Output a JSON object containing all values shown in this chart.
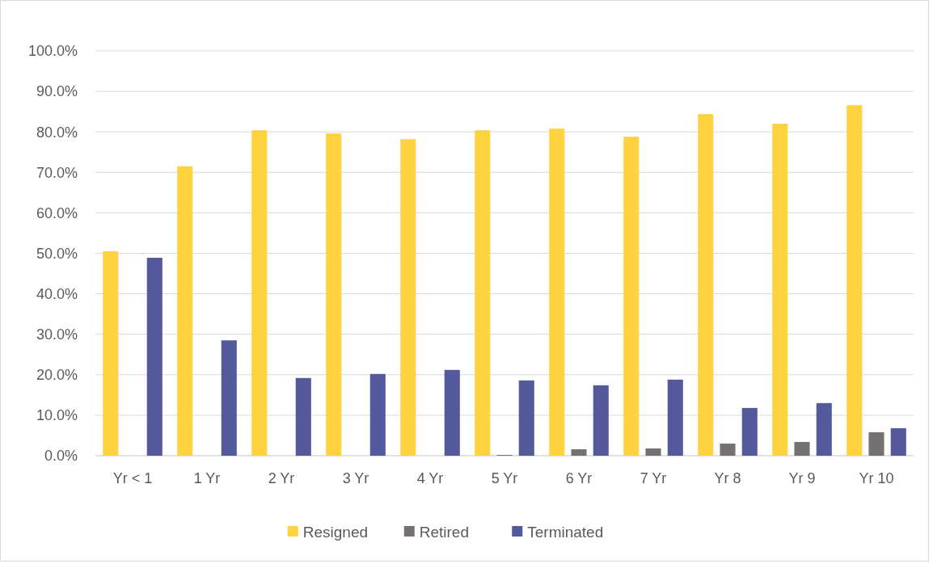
{
  "chart_data": {
    "type": "bar",
    "categories": [
      "Yr < 1",
      "1 Yr",
      "2 Yr",
      "3 Yr",
      "4 Yr",
      "5 Yr",
      "6 Yr",
      "7 Yr",
      "Yr 8",
      "Yr 9",
      "Yr 10"
    ],
    "series": [
      {
        "name": "Resigned",
        "color": "#ffd33f",
        "values": [
          50.5,
          71.5,
          80.4,
          79.6,
          78.2,
          80.4,
          80.8,
          78.8,
          84.4,
          82.0,
          86.6
        ]
      },
      {
        "name": "Retired",
        "color": "#767171",
        "values": [
          0,
          0,
          0,
          0,
          0,
          0.2,
          1.6,
          1.8,
          3.0,
          3.4,
          5.8
        ]
      },
      {
        "name": "Terminated",
        "color": "#54599c",
        "values": [
          48.9,
          28.5,
          19.2,
          20.2,
          21.2,
          18.6,
          17.4,
          18.8,
          11.8,
          13.0,
          6.8
        ]
      }
    ],
    "ylim": [
      0,
      100
    ],
    "yticks": [
      {
        "value": 0,
        "label": "0.0%"
      },
      {
        "value": 10,
        "label": "10.0%"
      },
      {
        "value": 20,
        "label": "20.0%"
      },
      {
        "value": 30,
        "label": "30.0%"
      },
      {
        "value": 40,
        "label": "40.0%"
      },
      {
        "value": 50,
        "label": "50.0%"
      },
      {
        "value": 60,
        "label": "60.0%"
      },
      {
        "value": 70,
        "label": "70.0%"
      },
      {
        "value": 80,
        "label": "80.0%"
      },
      {
        "value": 90,
        "label": "90.0%"
      },
      {
        "value": 100,
        "label": "100.0%"
      }
    ],
    "grid": "y",
    "legend": "bottom"
  }
}
